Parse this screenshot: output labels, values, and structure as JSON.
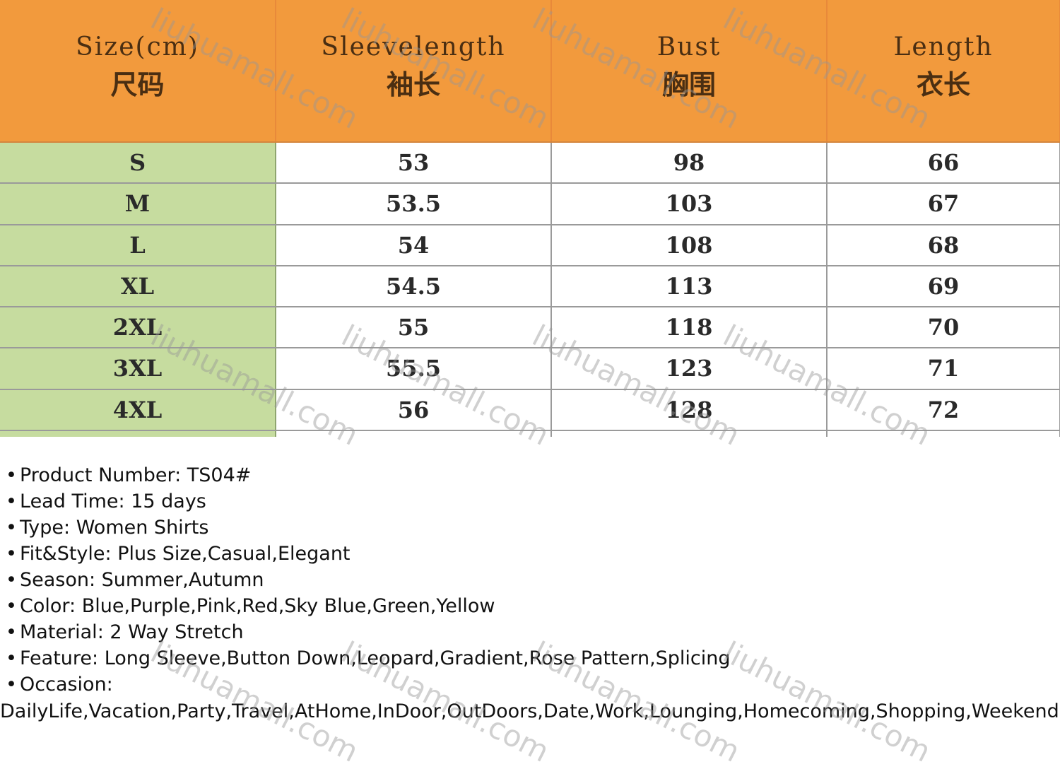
{
  "size_table": {
    "headers": [
      {
        "en": "Size(cm)",
        "zh": "尺码"
      },
      {
        "en": "Sleevelength",
        "zh": "袖长"
      },
      {
        "en": "Bust",
        "zh": "胸围"
      },
      {
        "en": "Length",
        "zh": "衣长"
      }
    ],
    "rows": [
      [
        "S",
        "53",
        "98",
        "66"
      ],
      [
        "M",
        "53.5",
        "103",
        "67"
      ],
      [
        "L",
        "54",
        "108",
        "68"
      ],
      [
        "XL",
        "54.5",
        "113",
        "69"
      ],
      [
        "2XL",
        "55",
        "118",
        "70"
      ],
      [
        "3XL",
        "55.5",
        "123",
        "71"
      ],
      [
        "4XL",
        "56",
        "128",
        "72"
      ]
    ]
  },
  "details": {
    "bullet": "•",
    "items": [
      "Product Number: TS04#",
      "Lead Time: 15 days",
      "Type: Women Shirts",
      "Fit&Style: Plus Size,Casual,Elegant",
      "Season: Summer,Autumn",
      "Color: Blue,Purple,Pink,Red,Sky Blue,Green,Yellow",
      "Material: 2 Way Stretch",
      "Feature: Long Sleeve,Button Down,Leopard,Gradient,Rose Pattern,Splicing",
      "Occasion:"
    ],
    "occasion_values": "DailyLife,Vacation,Party,Travel,AtHome,InDoor,OutDoors,Date,Work,Lounging,Homecoming,Shopping,Weekend,Night"
  },
  "watermark": "liuhuamall.com",
  "colors": {
    "header_bg": "#f29a3d",
    "size_col_bg": "#c6dc9f"
  }
}
